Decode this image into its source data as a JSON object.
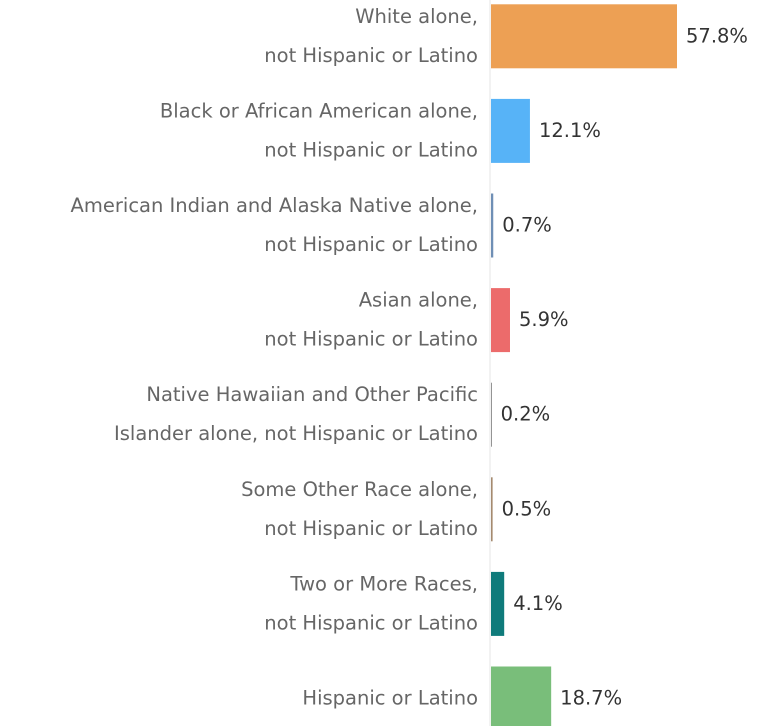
{
  "chart_data": {
    "type": "bar",
    "orientation": "horizontal",
    "categories": [
      [
        "White alone,",
        "not Hispanic or Latino"
      ],
      [
        "Black or African American alone,",
        "not Hispanic or Latino"
      ],
      [
        "American Indian and Alaska Native alone,",
        "not Hispanic or Latino"
      ],
      [
        "Asian alone,",
        "not Hispanic or Latino"
      ],
      [
        "Native Hawaiian and Other Pacific",
        "Islander alone, not Hispanic or Latino"
      ],
      [
        "Some Other Race alone,",
        "not Hispanic or Latino"
      ],
      [
        "Two or More Races,",
        "not Hispanic or Latino"
      ],
      [
        "Hispanic or Latino"
      ]
    ],
    "values": [
      57.8,
      12.1,
      0.7,
      5.9,
      0.2,
      0.5,
      4.1,
      18.7
    ],
    "value_labels": [
      "57.8%",
      "12.1%",
      "0.7%",
      "5.9%",
      "0.2%",
      "0.5%",
      "4.1%",
      "18.7%"
    ],
    "colors": [
      "#eda054",
      "#57b3f7",
      "#6f8fb5",
      "#ec6b6b",
      "#5a5a5a",
      "#a58a6f",
      "#0f7b7b",
      "#79be7a"
    ],
    "xlim": [
      0,
      57.8
    ],
    "grid": false,
    "legend": "none",
    "title": "",
    "xlabel": "",
    "ylabel": ""
  }
}
